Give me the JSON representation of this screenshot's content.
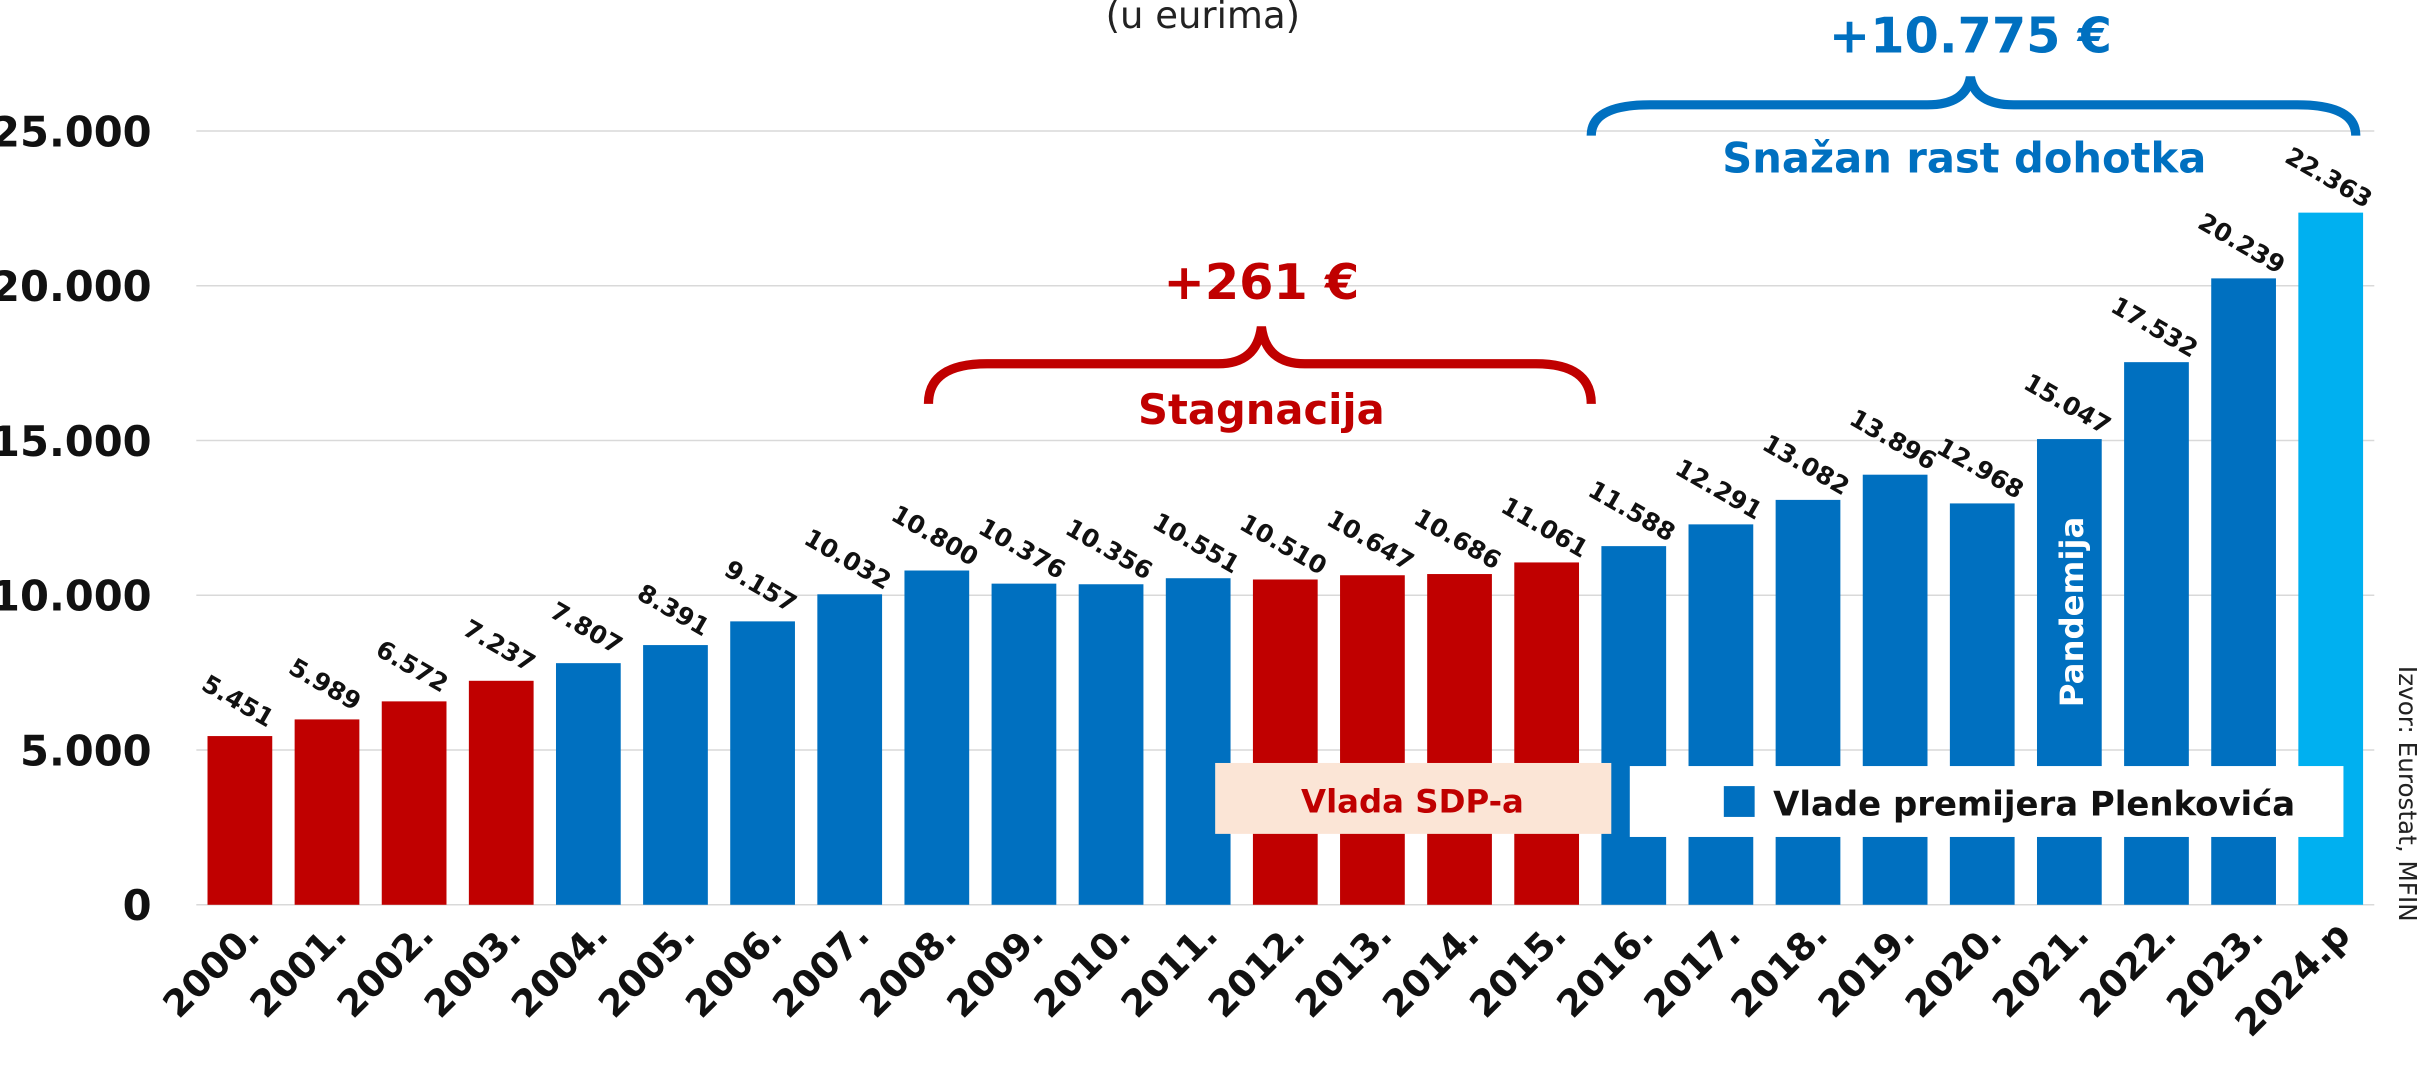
{
  "chart_data": {
    "type": "bar",
    "subtitle": "(u eurima)",
    "categories": [
      "2000.",
      "2001.",
      "2002.",
      "2003.",
      "2004.",
      "2005.",
      "2006.",
      "2007.",
      "2008.",
      "2009.",
      "2010.",
      "2011.",
      "2012.",
      "2013.",
      "2014.",
      "2015.",
      "2016.",
      "2017.",
      "2018.",
      "2019.",
      "2020.",
      "2021.",
      "2022.",
      "2023.",
      "2024.p"
    ],
    "values": [
      5451,
      5989,
      6572,
      7237,
      7807,
      8391,
      9157,
      10032,
      10800,
      10376,
      10356,
      10551,
      10510,
      10647,
      10686,
      11061,
      11588,
      12291,
      13082,
      13896,
      12968,
      15047,
      17532,
      20239,
      22363
    ],
    "value_labels": [
      "5.451",
      "5.989",
      "6.572",
      "7.237",
      "7.807",
      "8.391",
      "9.157",
      "10.032",
      "10.800",
      "10.376",
      "10.356",
      "10.551",
      "10.510",
      "10.647",
      "10.686",
      "11.061",
      "11.588",
      "12.291",
      "13.082",
      "13.896",
      "12.968",
      "15.047",
      "17.532",
      "20.239",
      "22.363"
    ],
    "colors": [
      "#c00000",
      "#c00000",
      "#c00000",
      "#c00000",
      "#0070c0",
      "#0070c0",
      "#0070c0",
      "#0070c0",
      "#0070c0",
      "#0070c0",
      "#0070c0",
      "#0070c0",
      "#c00000",
      "#c00000",
      "#c00000",
      "#c00000",
      "#0070c0",
      "#0070c0",
      "#0070c0",
      "#0070c0",
      "#0070c0",
      "#0070c0",
      "#0070c0",
      "#0070c0",
      "#00b0f0"
    ],
    "ylim": [
      0,
      25000
    ],
    "yticks": [
      0,
      {
        "value": 5000,
        "label": "5.000"
      },
      {
        "value": 10000,
        "label": "10.000"
      },
      {
        "value": 15000,
        "label": "15.000"
      },
      {
        "value": 20000,
        "label": "20.000"
      },
      {
        "value": 25000,
        "label": "25.000"
      }
    ],
    "grid": true,
    "legend": [
      {
        "name": "Vlada SDP-a",
        "color": "#c00000"
      },
      {
        "name": "Vlade premijera Plenkovića",
        "color": "#0070c0"
      }
    ],
    "annotations": [
      "+261 €",
      "Stagnacija",
      "+10.775 €",
      "Snažan rast dohotka",
      "Pandemija"
    ],
    "source": "Izvor: Eurostat, MFIN"
  }
}
